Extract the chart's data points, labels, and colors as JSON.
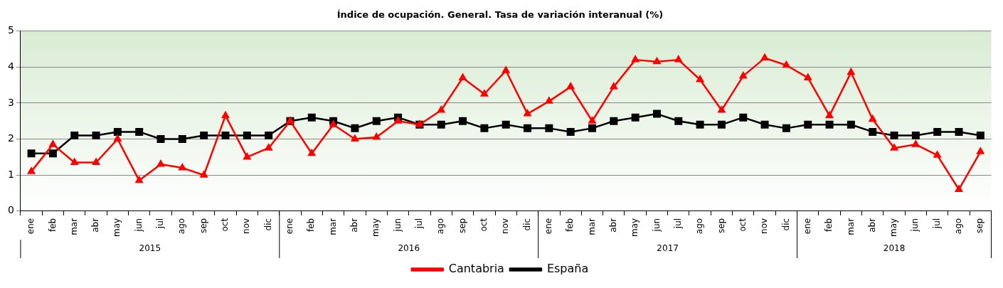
{
  "chart_data": {
    "type": "line",
    "title": "Índice de ocupación. General. Tasa de variación interanual (%)",
    "categories": [
      "ene",
      "feb",
      "mar",
      "abr",
      "may",
      "jun",
      "jul",
      "ago",
      "sep",
      "oct",
      "nov",
      "dic",
      "ene",
      "feb",
      "mar",
      "abr",
      "may",
      "jun",
      "jul",
      "ago",
      "sep",
      "oct",
      "nov",
      "dic",
      "ene",
      "feb",
      "mar",
      "abr",
      "may",
      "jun",
      "jul",
      "ago",
      "sep",
      "oct",
      "nov",
      "dic",
      "ene",
      "feb",
      "mar",
      "abr",
      "may",
      "jun",
      "jul",
      "ago",
      "sep"
    ],
    "annotations": [
      "2015",
      "2016",
      "2017",
      "2018"
    ],
    "series": [
      {
        "name": "Cantabria",
        "color": "#ff0000",
        "marker": "triangle",
        "values": [
          1.1,
          1.85,
          1.35,
          1.35,
          2.0,
          0.85,
          1.3,
          1.2,
          1.0,
          2.65,
          1.5,
          1.75,
          2.5,
          1.6,
          2.4,
          2.0,
          2.05,
          2.5,
          2.4,
          2.8,
          3.7,
          3.25,
          3.9,
          2.7,
          3.05,
          3.45,
          2.5,
          3.45,
          4.2,
          4.15,
          4.2,
          3.65,
          2.8,
          3.75,
          4.25,
          4.05,
          3.7,
          2.65,
          3.85,
          2.55,
          1.75,
          1.85,
          1.55,
          0.6,
          1.65
        ]
      },
      {
        "name": "España",
        "color": "#000000",
        "marker": "square",
        "values": [
          1.6,
          1.6,
          2.1,
          2.1,
          2.2,
          2.2,
          2.0,
          2.0,
          2.1,
          2.1,
          2.1,
          2.1,
          2.5,
          2.6,
          2.5,
          2.3,
          2.5,
          2.6,
          2.4,
          2.4,
          2.5,
          2.3,
          2.4,
          2.3,
          2.3,
          2.2,
          2.3,
          2.5,
          2.6,
          2.7,
          2.5,
          2.4,
          2.4,
          2.6,
          2.4,
          2.3,
          2.4,
          2.4,
          2.4,
          2.2,
          2.1,
          2.1,
          2.2,
          2.2,
          2.1
        ]
      }
    ],
    "ylim": [
      0,
      5
    ],
    "yticks": [
      0,
      1,
      2,
      3,
      4,
      5
    ],
    "grid": "y",
    "legend": "bottom"
  }
}
